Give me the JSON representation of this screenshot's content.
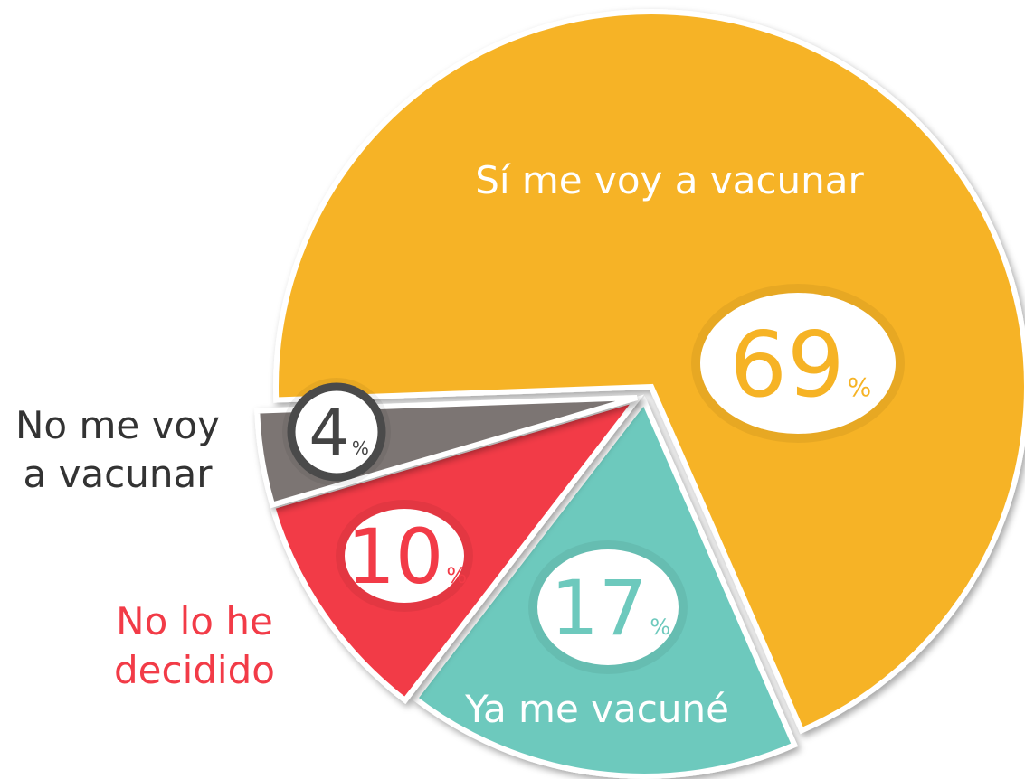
{
  "chart_data": {
    "type": "pie",
    "categories": [
      "Sí me voy a vacunar",
      "Ya me vacuné",
      "No lo he decidido",
      "No me voy a vacunar"
    ],
    "values": [
      69,
      17,
      10,
      4
    ],
    "unit": "%",
    "colors": [
      "#f6b325",
      "#6dc9bd",
      "#f23b47",
      "#7b7573"
    ]
  }
}
